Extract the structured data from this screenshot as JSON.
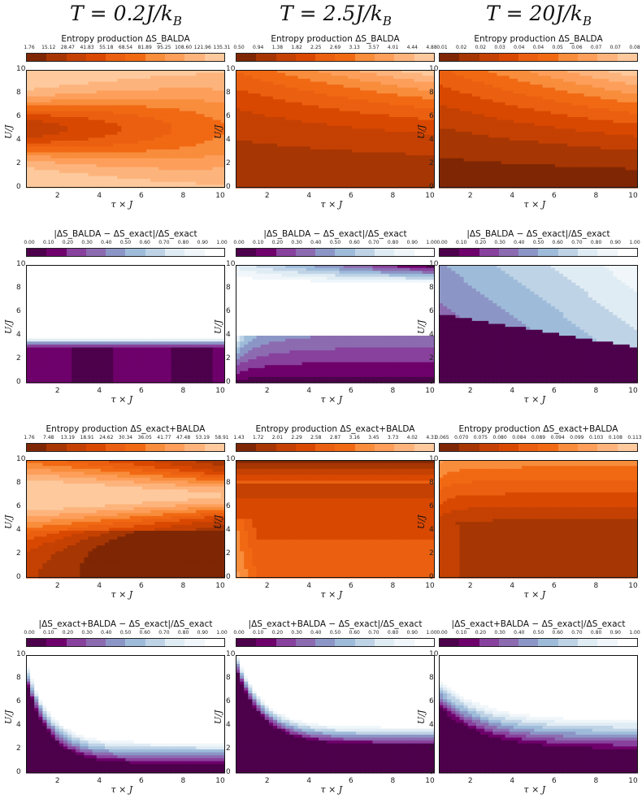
{
  "columns": [
    {
      "title": "T = 0.2J/k",
      "sub": "B"
    },
    {
      "title": "T = 2.5J/k",
      "sub": "B"
    },
    {
      "title": "T = 20J/k",
      "sub": "B"
    }
  ],
  "axes": {
    "xlabel": "τ × J",
    "ylabel": "U/J",
    "xticks": [
      "2",
      "4",
      "6",
      "8",
      "10"
    ],
    "yticks": [
      "0",
      "2",
      "4",
      "6",
      "8",
      "10"
    ]
  },
  "colors": {
    "orange": [
      "#7f2704",
      "#a63603",
      "#c44103",
      "#d94801",
      "#ea6010",
      "#f16913",
      "#f88d3c",
      "#fd9f5b",
      "#fdb47c",
      "#fdc99d",
      "#fde0c5",
      "#fff5eb"
    ],
    "purple": [
      "#4d004b",
      "#6e016b",
      "#88419d",
      "#8c6bb1",
      "#8c96c6",
      "#9ebcda",
      "#bfd3e6",
      "#e0ecf4",
      "#f0f6fa",
      "#ffffff"
    ]
  },
  "chart_data": [
    {
      "type": "heatmap",
      "row": 0,
      "col": 0,
      "title": "Entropy production ΔS_BALDA",
      "palette": "orange",
      "levels": [
        "1.76",
        "15.12",
        "28.47",
        "41.83",
        "55.18",
        "68.54",
        "81.89",
        "95.25",
        "108.60",
        "121.96",
        "135.31"
      ],
      "xlim": [
        0.5,
        10
      ],
      "ylim": [
        0,
        10
      ],
      "pattern": "a"
    },
    {
      "type": "heatmap",
      "row": 0,
      "col": 1,
      "title": "Entropy production ΔS_BALDA",
      "palette": "orange",
      "levels": [
        "0.50",
        "0.94",
        "1.38",
        "1.82",
        "2.25",
        "2.69",
        "3.13",
        "3.57",
        "4.01",
        "4.44",
        "4.88"
      ],
      "xlim": [
        0.5,
        10
      ],
      "ylim": [
        0,
        10
      ],
      "pattern": "b"
    },
    {
      "type": "heatmap",
      "row": 0,
      "col": 2,
      "title": "Entropy production ΔS_BALDA",
      "palette": "orange",
      "levels": [
        "0.01",
        "0.02",
        "0.02",
        "0.03",
        "0.04",
        "0.04",
        "0.05",
        "0.06",
        "0.07",
        "0.07",
        "0.08"
      ],
      "xlim": [
        0.5,
        10
      ],
      "ylim": [
        0,
        10
      ],
      "pattern": "c"
    },
    {
      "type": "heatmap",
      "row": 1,
      "col": 0,
      "title": "|ΔS_BALDA − ΔS_exact|/ΔS_exact",
      "palette": "purple",
      "levels": [
        "0.00",
        "0.10",
        "0.20",
        "0.30",
        "0.40",
        "0.50",
        "0.60",
        "0.70",
        "0.80",
        "0.90",
        "1.00"
      ],
      "xlim": [
        0.5,
        10
      ],
      "ylim": [
        0,
        10
      ],
      "pattern": "d"
    },
    {
      "type": "heatmap",
      "row": 1,
      "col": 1,
      "title": "|ΔS_BALDA − ΔS_exact|/ΔS_exact",
      "palette": "purple",
      "levels": [
        "0.00",
        "0.10",
        "0.20",
        "0.30",
        "0.40",
        "0.50",
        "0.60",
        "0.70",
        "0.80",
        "0.90",
        "1.00"
      ],
      "xlim": [
        0.5,
        10
      ],
      "ylim": [
        0,
        10
      ],
      "pattern": "e"
    },
    {
      "type": "heatmap",
      "row": 1,
      "col": 2,
      "title": "|ΔS_BALDA − ΔS_exact|/ΔS_exact",
      "palette": "purple",
      "levels": [
        "0.00",
        "0.10",
        "0.20",
        "0.30",
        "0.40",
        "0.50",
        "0.60",
        "0.70",
        "0.80",
        "0.90",
        "1.00"
      ],
      "xlim": [
        0.5,
        10
      ],
      "ylim": [
        0,
        10
      ],
      "pattern": "f"
    },
    {
      "type": "heatmap",
      "row": 2,
      "col": 0,
      "title": "Entropy production ΔS_exact+BALDA",
      "palette": "orange",
      "levels": [
        "1.76",
        "7.48",
        "13.19",
        "18.91",
        "24.62",
        "30.34",
        "36.05",
        "41.77",
        "47.48",
        "53.19",
        "58.91"
      ],
      "xlim": [
        0.5,
        10
      ],
      "ylim": [
        0,
        10
      ],
      "pattern": "g"
    },
    {
      "type": "heatmap",
      "row": 2,
      "col": 1,
      "title": "Entropy production ΔS_exact+BALDA",
      "palette": "orange",
      "levels": [
        "1.43",
        "1.72",
        "2.01",
        "2.29",
        "2.58",
        "2.87",
        "3.16",
        "3.45",
        "3.73",
        "4.02",
        "4.31"
      ],
      "xlim": [
        0.5,
        10
      ],
      "ylim": [
        0,
        10
      ],
      "pattern": "h"
    },
    {
      "type": "heatmap",
      "row": 2,
      "col": 2,
      "title": "Entropy production ΔS_exact+BALDA",
      "palette": "orange",
      "levels": [
        "0.065",
        "0.070",
        "0.075",
        "0.080",
        "0.084",
        "0.089",
        "0.094",
        "0.099",
        "0.103",
        "0.108",
        "0.113"
      ],
      "xlim": [
        0.5,
        10
      ],
      "ylim": [
        0,
        10
      ],
      "pattern": "i"
    },
    {
      "type": "heatmap",
      "row": 3,
      "col": 0,
      "title": "|ΔS_exact+BALDA − ΔS_exact|/ΔS_exact",
      "palette": "purple",
      "levels": [
        "0.00",
        "0.10",
        "0.20",
        "0.30",
        "0.40",
        "0.50",
        "0.60",
        "0.70",
        "0.80",
        "0.90",
        "1.00"
      ],
      "xlim": [
        0.5,
        10
      ],
      "ylim": [
        0,
        10
      ],
      "pattern": "j"
    },
    {
      "type": "heatmap",
      "row": 3,
      "col": 1,
      "title": "|ΔS_exact+BALDA − ΔS_exact|/ΔS_exact",
      "palette": "purple",
      "levels": [
        "0.00",
        "0.10",
        "0.20",
        "0.30",
        "0.40",
        "0.50",
        "0.60",
        "0.70",
        "0.80",
        "0.90",
        "1.00"
      ],
      "xlim": [
        0.5,
        10
      ],
      "ylim": [
        0,
        10
      ],
      "pattern": "k"
    },
    {
      "type": "heatmap",
      "row": 3,
      "col": 2,
      "title": "|ΔS_exact+BALDA − ΔS_exact|/ΔS_exact",
      "palette": "purple",
      "levels": [
        "0.00",
        "0.10",
        "0.20",
        "0.30",
        "0.40",
        "0.50",
        "0.60",
        "0.70",
        "0.80",
        "0.90",
        "1.00"
      ],
      "xlim": [
        0.5,
        10
      ],
      "ylim": [
        0,
        10
      ],
      "pattern": "l"
    }
  ]
}
